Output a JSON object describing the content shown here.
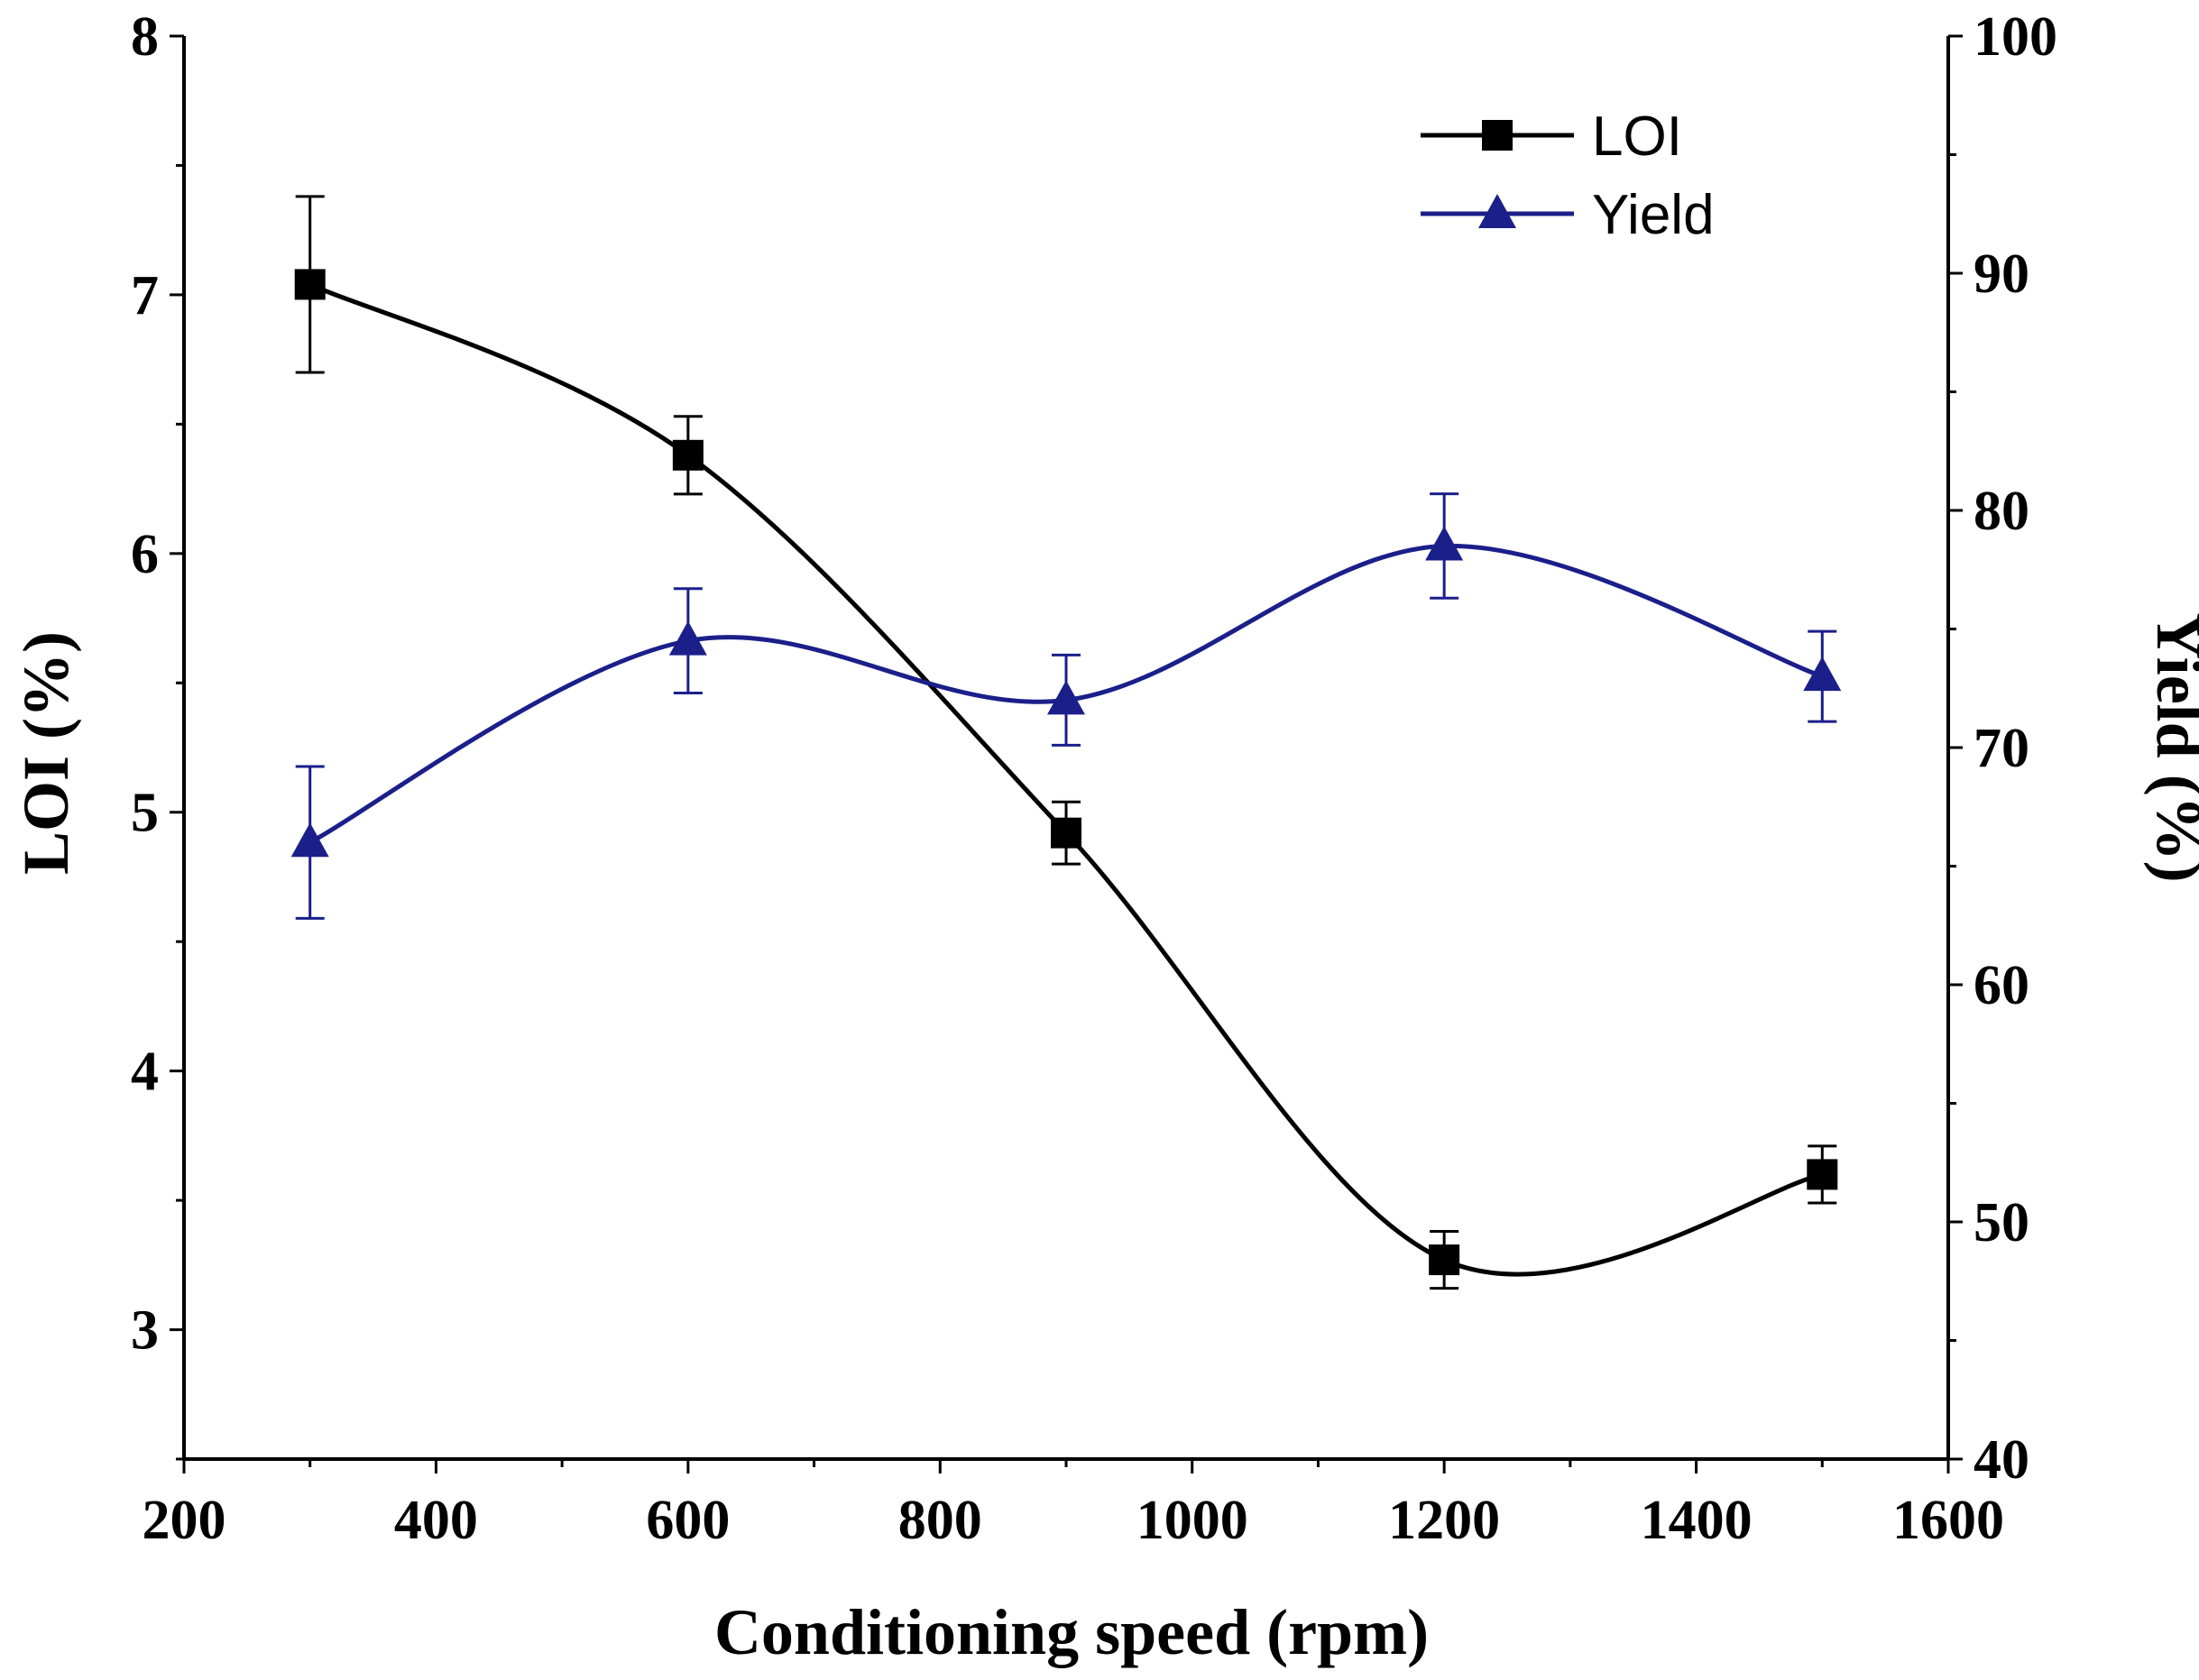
{
  "chart_data": {
    "type": "line",
    "xlabel": "Conditioning speed (rpm)",
    "ylabel": "LOI (%)",
    "y2label": "Yield (%)",
    "xlim": [
      200,
      1600
    ],
    "ylim": [
      2.5,
      8
    ],
    "y2lim": [
      40,
      100
    ],
    "xticks": [
      "200",
      "400",
      "600",
      "800",
      "1000",
      "1200",
      "1400",
      "1600"
    ],
    "yticks": [
      "3",
      "4",
      "5",
      "6",
      "7",
      "8"
    ],
    "y2ticks": [
      "40",
      "50",
      "60",
      "70",
      "80",
      "90",
      "100"
    ],
    "legend_position": "top-right",
    "grid": false,
    "x": [
      300,
      600,
      900,
      1200,
      1500
    ],
    "series": [
      {
        "name": "LOI",
        "axis": "left",
        "color": "#000000",
        "marker": "square",
        "values": [
          7.04,
          6.38,
          4.92,
          3.27,
          3.6
        ],
        "errors": [
          0.34,
          0.15,
          0.12,
          0.11,
          0.11
        ]
      },
      {
        "name": "Yield",
        "axis": "right",
        "color": "#1b1f8a",
        "marker": "triangle",
        "values": [
          66.0,
          74.5,
          72.0,
          78.5,
          73.0
        ],
        "errors": [
          3.2,
          2.2,
          1.9,
          2.2,
          1.9
        ]
      }
    ]
  }
}
